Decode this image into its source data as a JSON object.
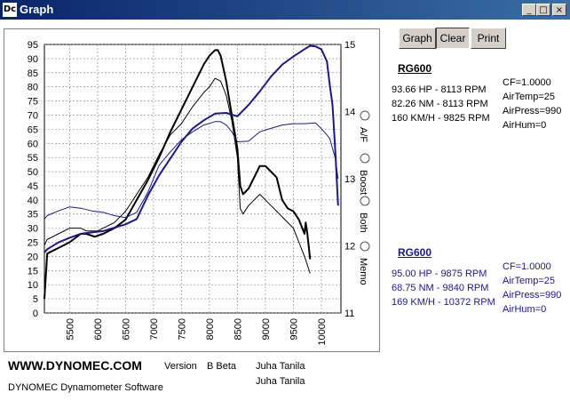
{
  "window": {
    "title": "Graph",
    "icon_text": "Dc",
    "minimize": "_",
    "maximize": "□",
    "close": "×"
  },
  "toolbar": {
    "graph_label": "Graph",
    "clear_label": "Clear",
    "print_label": "Print"
  },
  "chart_data": {
    "type": "line",
    "x_ticks": [
      "5500",
      "6000",
      "6500",
      "7000",
      "7500",
      "8000",
      "8500",
      "9000",
      "9500",
      "10000"
    ],
    "xlim": [
      5050,
      10350
    ],
    "y_left_ticks": [
      "0",
      "5",
      "10",
      "15",
      "20",
      "25",
      "30",
      "35",
      "40",
      "45",
      "50",
      "55",
      "60",
      "65",
      "70",
      "75",
      "80",
      "85",
      "90",
      "95"
    ],
    "ylim_left": [
      0,
      95
    ],
    "y_right_ticks": [
      "11",
      "12",
      "13",
      "14",
      "15"
    ],
    "ylim_right": [
      11,
      15
    ],
    "grid": true,
    "legend_options": [
      "A/F",
      "Boost",
      "Both",
      "Memo"
    ],
    "series": [
      {
        "name": "RG600",
        "color": "#000000",
        "width": 2,
        "x": [
          5050,
          5100,
          5300,
          5500,
          5700,
          5800,
          5950,
          6100,
          6300,
          6500,
          6700,
          6900,
          7100,
          7300,
          7500,
          7700,
          7900,
          8000,
          8100,
          8150,
          8200,
          8300,
          8400,
          8500,
          8550,
          8600,
          8700,
          8800,
          8900,
          9000,
          9100,
          9200,
          9300,
          9400,
          9500,
          9600,
          9700,
          9720,
          9750,
          9800
        ],
        "y": [
          5,
          21,
          23,
          25,
          28,
          28,
          27,
          28,
          30,
          33,
          40,
          47,
          55,
          64,
          72,
          80,
          88,
          91,
          93,
          93,
          91,
          82,
          70,
          58,
          45,
          42,
          44,
          48,
          52,
          52,
          50,
          48,
          40,
          37,
          36,
          33,
          28,
          32,
          28,
          19
        ]
      },
      {
        "name": "",
        "color": "#000000",
        "width": 1,
        "x": [
          5050,
          5100,
          5300,
          5500,
          5700,
          5800,
          6000,
          6100,
          6300,
          6500,
          6700,
          6900,
          7100,
          7300,
          7500,
          7700,
          7900,
          8000,
          8100,
          8200,
          8300,
          8400,
          8500,
          8550,
          8600,
          8700,
          8800,
          8900,
          9000,
          9100,
          9300,
          9500,
          9600,
          9700,
          9800
        ],
        "y": [
          24,
          26,
          28,
          30,
          30,
          29,
          29,
          30,
          32,
          36,
          42,
          48,
          56,
          63,
          67,
          73,
          78,
          80,
          83,
          82,
          77,
          68,
          55,
          37,
          35,
          38,
          40,
          42,
          40,
          38,
          34,
          30,
          25,
          20,
          14
        ]
      },
      {
        "name": "RG600",
        "color": "#1a1a80",
        "width": 2,
        "x": [
          5050,
          5100,
          5300,
          5500,
          5700,
          5900,
          6100,
          6300,
          6500,
          6700,
          6900,
          7100,
          7300,
          7500,
          7700,
          7900,
          8100,
          8300,
          8500,
          8700,
          8900,
          9100,
          9300,
          9500,
          9700,
          9800,
          9900,
          10000,
          10100,
          10150,
          10200,
          10250,
          10300
        ],
        "y": [
          11.9,
          11.95,
          12.05,
          12.12,
          12.18,
          12.2,
          12.22,
          12.27,
          12.32,
          12.4,
          12.75,
          13.05,
          13.3,
          13.55,
          13.75,
          13.87,
          13.97,
          13.98,
          13.93,
          14.1,
          14.3,
          14.52,
          14.7,
          14.82,
          14.93,
          14.98,
          14.97,
          14.93,
          14.75,
          14.4,
          14.1,
          13.4,
          12.6
        ]
      },
      {
        "name": "",
        "color": "#1a1a80",
        "width": 1,
        "x": [
          5050,
          5100,
          5300,
          5500,
          5700,
          5900,
          6100,
          6300,
          6500,
          6700,
          6900,
          7100,
          7300,
          7500,
          7700,
          7900,
          8100,
          8200,
          8300,
          8400,
          8500,
          8700,
          8900,
          9100,
          9300,
          9500,
          9700,
          9900,
          10050,
          10150,
          10250,
          10300
        ],
        "y": [
          12.4,
          12.45,
          12.52,
          12.58,
          12.56,
          12.52,
          12.5,
          12.45,
          12.42,
          12.5,
          12.8,
          13.2,
          13.4,
          13.58,
          13.7,
          13.8,
          13.85,
          13.85,
          13.8,
          13.7,
          13.55,
          13.56,
          13.7,
          13.75,
          13.8,
          13.82,
          13.82,
          13.83,
          13.7,
          13.6,
          13.3,
          13.0
        ]
      }
    ]
  },
  "run1": {
    "title": "RG600",
    "hp": "93.66 HP - 8113 RPM",
    "nm": "82.26 NM - 8113 RPM",
    "kmh": "160 KM/H - 9825 RPM",
    "cf": "CF=1.0000",
    "airtemp": "AirTemp=25",
    "airpress": "AirPress=990",
    "airhum": "AirHum=0"
  },
  "run2": {
    "title": "RG600",
    "hp": "95.00 HP - 9875 RPM",
    "nm": "68.75 NM - 9840 RPM",
    "kmh": "169 KM/H - 10372 RPM",
    "cf": "CF=1.0000",
    "airtemp": "AirTemp=25",
    "airpress": "AirPress=990",
    "airhum": "AirHum=0"
  },
  "footer": {
    "brand": "WWW.DYNOMEC.COM",
    "version_label": "Version",
    "version_value": "B Beta",
    "author1": "Juha Tanila",
    "author2": "Juha Tanila",
    "product": "DYNOMEC Dynamometer Software"
  },
  "colors": {
    "run1": "#000000",
    "run2": "#1a1a80",
    "titlebar": "#0a246a"
  }
}
